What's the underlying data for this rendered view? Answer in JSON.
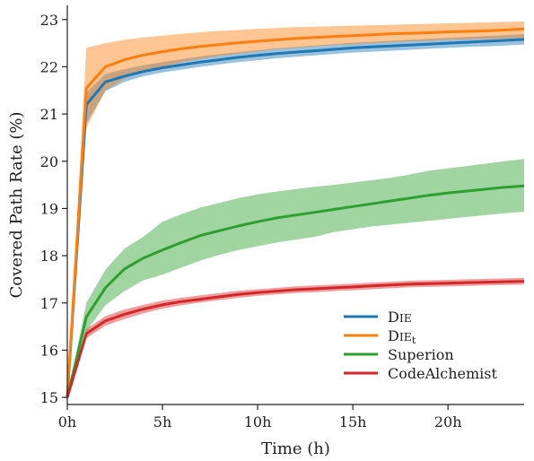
{
  "chart_data": {
    "type": "line",
    "xlabel": "Time (h)",
    "ylabel": "Covered Path Rate (%)",
    "xlim": [
      0,
      24
    ],
    "ylim": [
      14.85,
      23.3
    ],
    "x_ticks": [
      0,
      5,
      10,
      15,
      20
    ],
    "x_tick_labels": [
      "0h",
      "5h",
      "10h",
      "15h",
      "20h"
    ],
    "y_ticks": [
      15,
      16,
      17,
      18,
      19,
      20,
      21,
      22,
      23
    ],
    "y_tick_labels": [
      "15",
      "16",
      "17",
      "18",
      "19",
      "20",
      "21",
      "22",
      "23"
    ],
    "grid": false,
    "legend_position": "lower-right",
    "x": [
      0,
      1,
      2,
      3,
      4,
      5,
      6,
      7,
      8,
      9,
      10,
      11,
      12,
      13,
      14,
      15,
      16,
      17,
      18,
      19,
      20,
      21,
      22,
      23,
      24
    ],
    "series": [
      {
        "name": "DIE",
        "name_main": "D",
        "name_smallcaps": "IE",
        "name_sub": "",
        "color": "#1f77b4",
        "values": [
          15.0,
          21.2,
          21.68,
          21.8,
          21.9,
          21.98,
          22.04,
          22.1,
          22.15,
          22.2,
          22.24,
          22.28,
          22.31,
          22.34,
          22.37,
          22.4,
          22.42,
          22.44,
          22.46,
          22.48,
          22.5,
          22.52,
          22.54,
          22.56,
          22.58
        ],
        "lower": [
          15.0,
          20.8,
          21.48,
          21.68,
          21.8,
          21.88,
          21.94,
          22.0,
          22.05,
          22.1,
          22.14,
          22.18,
          22.21,
          22.24,
          22.27,
          22.3,
          22.32,
          22.34,
          22.36,
          22.38,
          22.4,
          22.42,
          22.43,
          22.45,
          22.47
        ],
        "upper": [
          15.0,
          21.45,
          21.85,
          21.95,
          22.03,
          22.1,
          22.16,
          22.22,
          22.27,
          22.31,
          22.35,
          22.39,
          22.42,
          22.45,
          22.48,
          22.51,
          22.53,
          22.55,
          22.57,
          22.59,
          22.61,
          22.63,
          22.65,
          22.67,
          22.69
        ]
      },
      {
        "name": "DIEt",
        "name_main": "D",
        "name_smallcaps": "IE",
        "name_sub": "t",
        "color": "#ff7f0e",
        "values": [
          15.0,
          21.55,
          22.0,
          22.15,
          22.25,
          22.32,
          22.38,
          22.43,
          22.47,
          22.51,
          22.54,
          22.57,
          22.6,
          22.62,
          22.64,
          22.66,
          22.68,
          22.7,
          22.71,
          22.72,
          22.74,
          22.75,
          22.76,
          22.78,
          22.8
        ],
        "lower": [
          15.0,
          20.7,
          21.5,
          21.75,
          21.9,
          22.0,
          22.1,
          22.17,
          22.23,
          22.28,
          22.33,
          22.37,
          22.4,
          22.43,
          22.46,
          22.48,
          22.5,
          22.52,
          22.54,
          22.55,
          22.57,
          22.58,
          22.59,
          22.6,
          22.62
        ],
        "upper": [
          15.0,
          22.4,
          22.5,
          22.57,
          22.62,
          22.66,
          22.7,
          22.73,
          22.76,
          22.78,
          22.8,
          22.82,
          22.84,
          22.85,
          22.86,
          22.87,
          22.88,
          22.89,
          22.9,
          22.91,
          22.92,
          22.93,
          22.94,
          22.95,
          22.96
        ]
      },
      {
        "name": "Superion",
        "name_main": "Superion",
        "name_smallcaps": "",
        "name_sub": "",
        "color": "#2ca02c",
        "values": [
          15.0,
          16.7,
          17.32,
          17.72,
          17.95,
          18.12,
          18.28,
          18.43,
          18.53,
          18.63,
          18.72,
          18.8,
          18.86,
          18.92,
          18.98,
          19.04,
          19.1,
          19.16,
          19.22,
          19.28,
          19.33,
          19.37,
          19.41,
          19.45,
          19.48
        ],
        "lower": [
          15.0,
          16.4,
          16.95,
          17.25,
          17.48,
          17.6,
          17.75,
          17.9,
          18.02,
          18.12,
          18.2,
          18.28,
          18.34,
          18.4,
          18.5,
          18.56,
          18.62,
          18.66,
          18.7,
          18.74,
          18.78,
          18.82,
          18.86,
          18.9,
          18.93
        ],
        "upper": [
          15.0,
          17.0,
          17.7,
          18.15,
          18.4,
          18.72,
          18.88,
          19.02,
          19.12,
          19.22,
          19.3,
          19.36,
          19.41,
          19.46,
          19.5,
          19.55,
          19.6,
          19.65,
          19.72,
          19.8,
          19.85,
          19.9,
          19.95,
          20.0,
          20.05
        ]
      },
      {
        "name": "CodeAlchemist",
        "name_main": "CodeAlchemist",
        "name_smallcaps": "",
        "name_sub": "",
        "color": "#d62728",
        "values": [
          15.0,
          16.35,
          16.62,
          16.76,
          16.87,
          16.96,
          17.03,
          17.08,
          17.13,
          17.18,
          17.22,
          17.25,
          17.28,
          17.3,
          17.32,
          17.34,
          17.36,
          17.38,
          17.4,
          17.41,
          17.42,
          17.43,
          17.44,
          17.45,
          17.46
        ],
        "lower": [
          15.0,
          16.25,
          16.52,
          16.66,
          16.78,
          16.88,
          16.95,
          17.01,
          17.06,
          17.11,
          17.15,
          17.18,
          17.21,
          17.23,
          17.25,
          17.27,
          17.29,
          17.31,
          17.33,
          17.34,
          17.35,
          17.36,
          17.37,
          17.38,
          17.39
        ],
        "upper": [
          15.0,
          16.45,
          16.72,
          16.86,
          16.96,
          17.05,
          17.11,
          17.16,
          17.21,
          17.26,
          17.29,
          17.32,
          17.35,
          17.37,
          17.39,
          17.41,
          17.43,
          17.45,
          17.47,
          17.48,
          17.49,
          17.5,
          17.51,
          17.52,
          17.53
        ]
      }
    ]
  }
}
